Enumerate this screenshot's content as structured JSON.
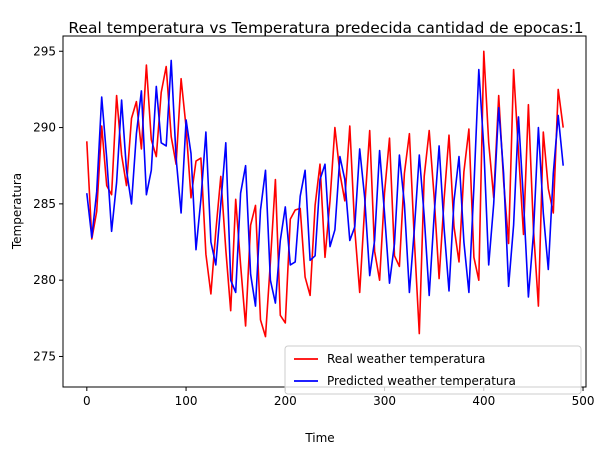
{
  "chart_data": {
    "type": "line",
    "title": "Real temperatura vs Temperatura predecida cantidad de epocas:1",
    "xlabel": "Time",
    "ylabel": "Temperatura",
    "xlim": [
      -24,
      503
    ],
    "ylim": [
      273,
      296
    ],
    "xticks": [
      0,
      100,
      200,
      300,
      400,
      500
    ],
    "yticks": [
      275,
      280,
      285,
      290,
      295
    ],
    "legend_position": "lower-right",
    "series": [
      {
        "name": "Real weather temperatura",
        "color": "#ff0000",
        "x": [
          0,
          5,
          10,
          15,
          20,
          25,
          30,
          35,
          40,
          45,
          50,
          55,
          60,
          65,
          70,
          75,
          80,
          85,
          90,
          95,
          100,
          105,
          110,
          115,
          120,
          125,
          130,
          135,
          140,
          145,
          150,
          155,
          160,
          165,
          170,
          175,
          180,
          185,
          190,
          195,
          200,
          205,
          210,
          215,
          220,
          225,
          230,
          235,
          240,
          245,
          250,
          255,
          260,
          265,
          270,
          275,
          280,
          285,
          290,
          295,
          300,
          305,
          310,
          315,
          320,
          325,
          330,
          335,
          340,
          345,
          350,
          355,
          360,
          365,
          370,
          375,
          380,
          385,
          390,
          395,
          400,
          405,
          410,
          415,
          420,
          425,
          430,
          435,
          440,
          445,
          450,
          455,
          460,
          465,
          470,
          475,
          480
        ],
        "values": [
          289.1,
          282.7,
          284.5,
          290.1,
          286.2,
          285.6,
          292.1,
          288.2,
          286.2,
          290.6,
          291.7,
          288.6,
          294.1,
          289.2,
          288.1,
          292.3,
          294.0,
          289.4,
          287.6,
          293.2,
          290.0,
          285.4,
          287.8,
          288.0,
          281.7,
          279.1,
          283.2,
          286.8,
          282.0,
          278.0,
          285.3,
          281.0,
          277.0,
          283.6,
          284.9,
          277.4,
          276.3,
          281.2,
          286.6,
          277.7,
          277.2,
          284.0,
          284.6,
          284.7,
          280.2,
          279.0,
          284.9,
          287.6,
          281.5,
          285.2,
          290.0,
          287.0,
          285.2,
          290.1,
          283.3,
          279.2,
          284.8,
          289.8,
          281.9,
          280.0,
          285.7,
          289.3,
          281.6,
          280.9,
          287.0,
          289.6,
          282.7,
          276.5,
          286.8,
          289.8,
          285.4,
          280.1,
          285.3,
          289.5,
          283.5,
          281.2,
          287.1,
          289.9,
          281.5,
          280.0,
          295.0,
          289.0,
          285.4,
          292.1,
          286.5,
          282.4,
          293.8,
          288.4,
          283.0,
          291.5,
          283.4,
          278.3,
          289.7,
          286.0,
          284.4,
          292.5,
          290.0
        ]
      },
      {
        "name": "Predicted weather temperatura",
        "color": "#0000ff",
        "x": [
          0,
          5,
          10,
          15,
          20,
          25,
          30,
          35,
          40,
          45,
          50,
          55,
          60,
          65,
          70,
          75,
          80,
          85,
          90,
          95,
          100,
          105,
          110,
          115,
          120,
          125,
          130,
          135,
          140,
          145,
          150,
          155,
          160,
          165,
          170,
          175,
          180,
          185,
          190,
          195,
          200,
          205,
          210,
          215,
          220,
          225,
          230,
          235,
          240,
          245,
          250,
          255,
          260,
          265,
          270,
          275,
          280,
          285,
          290,
          295,
          300,
          305,
          310,
          315,
          320,
          325,
          330,
          335,
          340,
          345,
          350,
          355,
          360,
          365,
          370,
          375,
          380,
          385,
          390,
          395,
          400,
          405,
          410,
          415,
          420,
          425,
          430,
          435,
          440,
          445,
          450,
          455,
          460,
          465,
          470,
          475,
          480
        ],
        "values": [
          285.7,
          282.8,
          285.8,
          292.0,
          288.0,
          283.2,
          286.4,
          291.8,
          287.2,
          285.0,
          289.6,
          292.4,
          285.6,
          287.2,
          292.7,
          289.0,
          288.8,
          294.4,
          288.0,
          284.4,
          290.5,
          288.3,
          282.0,
          285.3,
          289.7,
          282.5,
          281.0,
          285.0,
          289.0,
          280.0,
          279.2,
          285.7,
          287.5,
          280.4,
          278.3,
          284.6,
          287.2,
          280.0,
          278.5,
          282.6,
          284.8,
          281.0,
          281.2,
          285.5,
          287.2,
          281.3,
          281.6,
          286.6,
          287.6,
          282.2,
          283.3,
          288.1,
          286.6,
          282.6,
          283.5,
          288.6,
          285.4,
          280.3,
          282.6,
          288.5,
          284.4,
          279.8,
          282.4,
          288.2,
          285.0,
          279.2,
          283.3,
          288.2,
          284.2,
          279.0,
          284.3,
          288.8,
          283.4,
          279.3,
          285.2,
          288.1,
          282.5,
          279.2,
          286.1,
          293.8,
          288.7,
          281.0,
          285.0,
          291.3,
          287.0,
          279.6,
          283.6,
          290.7,
          285.2,
          278.9,
          283.0,
          290.0,
          284.4,
          280.7,
          287.0,
          290.8,
          287.5
        ]
      }
    ]
  }
}
